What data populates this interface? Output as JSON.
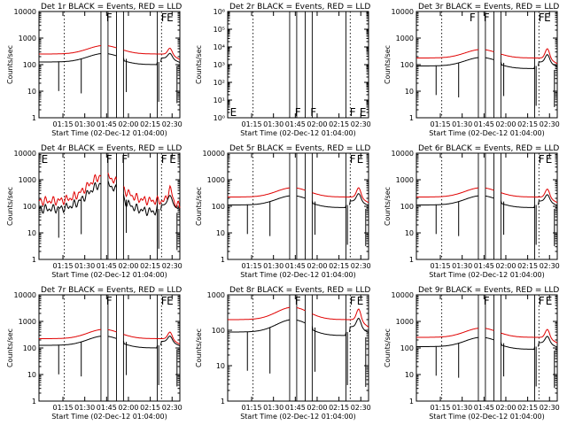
{
  "colors": {
    "events": "#000000",
    "lld": "#e00000",
    "axis": "#000000",
    "background": "#ffffff"
  },
  "chart_data": [
    {
      "type": "line",
      "title": "Det 1r BLACK = Events, RED = LLD",
      "ylabel": "Counts/sec",
      "xlabel": "Start Time (02-Dec-12 01:04:00)",
      "yscale": "log",
      "ylim": [
        1,
        10000
      ],
      "yticks": [
        "1",
        "10",
        "100",
        "1000",
        "10000"
      ],
      "xlim": [
        0,
        100
      ],
      "xticks": [
        "01:15",
        "01:30",
        "01:45",
        "02:00",
        "02:15",
        "02:30"
      ],
      "lld_level": 2.4,
      "events_level": 2.1,
      "bump_amplitude": 0.32,
      "flare_extra": 0.22,
      "flags": [
        {
          "label": "F",
          "x": 47
        },
        {
          "label": "F",
          "x": 86
        },
        {
          "label": "E",
          "x": 90
        }
      ]
    },
    {
      "type": "line",
      "title": "Det 2r BLACK = Events, RED = LLD",
      "ylabel": "Counts/sec",
      "xlabel": "Start Time (02-Dec-12 01:04:00)",
      "yscale": "log",
      "ylim": [
        1,
        1000000
      ],
      "yticks": [
        "10⁰",
        "10¹",
        "10²",
        "10³",
        "10⁴",
        "10⁵",
        "10⁶"
      ],
      "xlim": [
        0,
        100
      ],
      "xticks": [
        "01:15",
        "01:30",
        "01:45",
        "02:00",
        "02:15",
        "02:30"
      ],
      "lld_level": null,
      "events_level": null,
      "bump_amplitude": 0,
      "flare_extra": 0,
      "flags": [
        {
          "label": "E",
          "x": 1
        },
        {
          "label": "F",
          "x": 47
        },
        {
          "label": "F",
          "x": 58
        },
        {
          "label": "F",
          "x": 86
        },
        {
          "label": "E",
          "x": 93
        }
      ]
    },
    {
      "type": "line",
      "title": "Det 3r BLACK = Events, RED = LLD",
      "ylabel": "Counts/sec",
      "xlabel": "Start Time (02-Dec-12 01:04:00)",
      "yscale": "log",
      "ylim": [
        1,
        10000
      ],
      "yticks": [
        "1",
        "10",
        "100",
        "1000",
        "10000"
      ],
      "xlim": [
        0,
        100
      ],
      "xticks": [
        "01:15",
        "01:30",
        "01:45",
        "02:00",
        "02:15",
        "02:30"
      ],
      "lld_level": 2.25,
      "events_level": 1.95,
      "bump_amplitude": 0.32,
      "flare_extra": 0.35,
      "flags": [
        {
          "label": "F",
          "x": 37
        },
        {
          "label": "F",
          "x": 47
        },
        {
          "label": "F",
          "x": 86
        },
        {
          "label": "E",
          "x": 90
        }
      ]
    },
    {
      "type": "line",
      "title": "Det 4r BLACK = Events, RED = LLD",
      "ylabel": "Counts/sec",
      "xlabel": "Start Time (02-Dec-12 01:04:00)",
      "yscale": "log",
      "ylim": [
        1,
        10000
      ],
      "yticks": [
        "1",
        "10",
        "100",
        "1000",
        "10000"
      ],
      "xlim": [
        0,
        100
      ],
      "xticks": [
        "01:15",
        "01:30",
        "01:45",
        "02:00",
        "02:15",
        "02:30"
      ],
      "lld_level": 2.2,
      "events_level": 1.9,
      "bump_amplitude": 0.95,
      "flare_extra": 0.45,
      "flags": [
        {
          "label": "E",
          "x": 1
        },
        {
          "label": "F",
          "x": 47
        },
        {
          "label": "F",
          "x": 58
        },
        {
          "label": "F",
          "x": 86
        },
        {
          "label": "E",
          "x": 92
        }
      ]
    },
    {
      "type": "line",
      "title": "Det 5r BLACK = Events, RED = LLD",
      "ylabel": "Counts/sec",
      "xlabel": "Start Time (02-Dec-12 01:04:00)",
      "yscale": "log",
      "ylim": [
        1,
        10000
      ],
      "yticks": [
        "1",
        "10",
        "100",
        "1000",
        "10000"
      ],
      "xlim": [
        0,
        100
      ],
      "xticks": [
        "01:15",
        "01:30",
        "01:45",
        "02:00",
        "02:15",
        "02:30"
      ],
      "lld_level": 2.35,
      "events_level": 2.05,
      "bump_amplitude": 0.35,
      "flare_extra": 0.35,
      "flags": [
        {
          "label": "F",
          "x": 86
        },
        {
          "label": "E",
          "x": 91
        }
      ]
    },
    {
      "type": "line",
      "title": "Det 6r BLACK = Events, RED = LLD",
      "ylabel": "Counts/sec",
      "xlabel": "Start Time (02-Dec-12 01:04:00)",
      "yscale": "log",
      "ylim": [
        1,
        10000
      ],
      "yticks": [
        "1",
        "10",
        "100",
        "1000",
        "10000"
      ],
      "xlim": [
        0,
        100
      ],
      "xticks": [
        "01:15",
        "01:30",
        "01:45",
        "02:00",
        "02:15",
        "02:30"
      ],
      "lld_level": 2.35,
      "events_level": 2.05,
      "bump_amplitude": 0.35,
      "flare_extra": 0.3,
      "flags": [
        {
          "label": "F",
          "x": 86
        },
        {
          "label": "E",
          "x": 91
        }
      ]
    },
    {
      "type": "line",
      "title": "Det 7r BLACK = Events, RED = LLD",
      "ylabel": "Counts/sec",
      "xlabel": "Start Time (02-Dec-12 01:04:00)",
      "yscale": "log",
      "ylim": [
        1,
        10000
      ],
      "yticks": [
        "1",
        "10",
        "100",
        "1000",
        "10000"
      ],
      "xlim": [
        0,
        100
      ],
      "xticks": [
        "01:15",
        "01:30",
        "01:45",
        "02:00",
        "02:15",
        "02:30"
      ],
      "lld_level": 2.35,
      "events_level": 2.1,
      "bump_amplitude": 0.35,
      "flare_extra": 0.25,
      "flags": [
        {
          "label": "F",
          "x": 47
        },
        {
          "label": "F",
          "x": 86
        },
        {
          "label": "E",
          "x": 90
        }
      ]
    },
    {
      "type": "line",
      "title": "Det 8r BLACK = Events, RED = LLD",
      "ylabel": "Counts/sec",
      "xlabel": "Start Time (02-Dec-12 01:04:00)",
      "yscale": "log",
      "ylim": [
        1,
        1000
      ],
      "yticks": [
        "1",
        "10",
        "100",
        "1000"
      ],
      "xlim": [
        0,
        100
      ],
      "xticks": [
        "01:15",
        "01:30",
        "01:45",
        "02:00",
        "02:15",
        "02:30"
      ],
      "lld_level": 2.3,
      "events_level": 1.95,
      "bump_amplitude": 0.35,
      "flare_extra": 0.3,
      "flags": [
        {
          "label": "F",
          "x": 47
        },
        {
          "label": "F",
          "x": 86
        },
        {
          "label": "E",
          "x": 91
        }
      ]
    },
    {
      "type": "line",
      "title": "Det 9r BLACK = Events, RED = LLD",
      "ylabel": "Counts/sec",
      "xlabel": "Start Time (02-Dec-12 01:04:00)",
      "yscale": "log",
      "ylim": [
        1,
        10000
      ],
      "yticks": [
        "1",
        "10",
        "100",
        "1000",
        "10000"
      ],
      "xlim": [
        0,
        100
      ],
      "xticks": [
        "01:15",
        "01:30",
        "01:45",
        "02:00",
        "02:15",
        "02:30"
      ],
      "lld_level": 2.4,
      "events_level": 2.05,
      "bump_amplitude": 0.35,
      "flare_extra": 0.3,
      "flags": [
        {
          "label": "F",
          "x": 47
        },
        {
          "label": "F",
          "x": 86
        },
        {
          "label": "E",
          "x": 91
        }
      ]
    }
  ]
}
